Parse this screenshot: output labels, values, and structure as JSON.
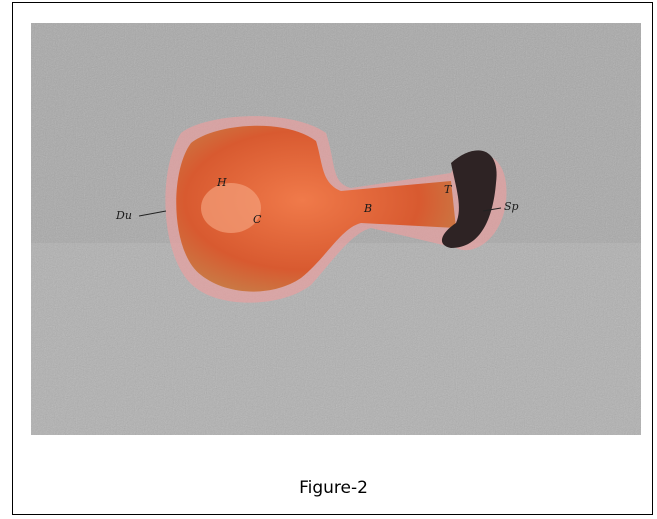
{
  "figure": {
    "labels": [
      "Du",
      "H",
      "C",
      "B",
      "T",
      "Sp"
    ],
    "caption": "Figure-2"
  }
}
